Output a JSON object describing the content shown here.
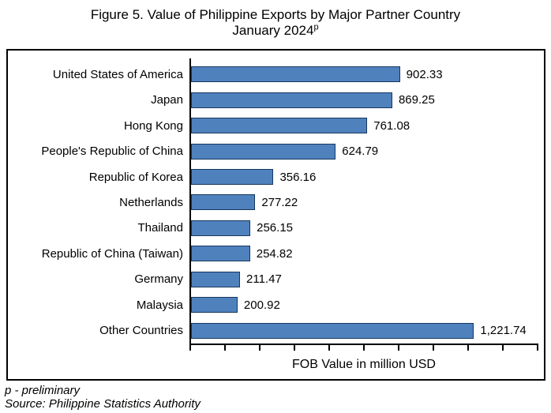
{
  "title": {
    "line1": "Figure 5. Value of Philippine Exports by Major Partner Country",
    "line2": "January 2024",
    "superscript": "p"
  },
  "chart_data": {
    "type": "bar",
    "orientation": "horizontal",
    "title": "Figure 5. Value of Philippine Exports by Major Partner Country January 2024p",
    "categories": [
      "United States of America",
      "Japan",
      "Hong Kong",
      "People's Republic of China",
      "Republic of Korea",
      "Netherlands",
      "Thailand",
      "Republic of China (Taiwan)",
      "Germany",
      "Malaysia",
      "Other Countries"
    ],
    "values": [
      902.33,
      869.25,
      761.08,
      624.79,
      356.16,
      277.22,
      256.15,
      254.82,
      211.47,
      200.92,
      1221.74
    ],
    "value_labels": [
      "902.33",
      "869.25",
      "761.08",
      "624.79",
      "356.16",
      "277.22",
      "256.15",
      "254.82",
      "211.47",
      "200.92",
      "1,221.74"
    ],
    "xlabel": "FOB Value in million USD",
    "ylabel": "",
    "xlim": [
      0,
      1500
    ],
    "x_tick_intervals": 10,
    "x_tick_labels_visible": false,
    "grid": false,
    "legend": "none",
    "bar_fill_color": "#4F81BD",
    "bar_border_color": "#17375E"
  },
  "footer": {
    "note": "p - preliminary",
    "source": "Source: Philippine Statistics Authority"
  }
}
